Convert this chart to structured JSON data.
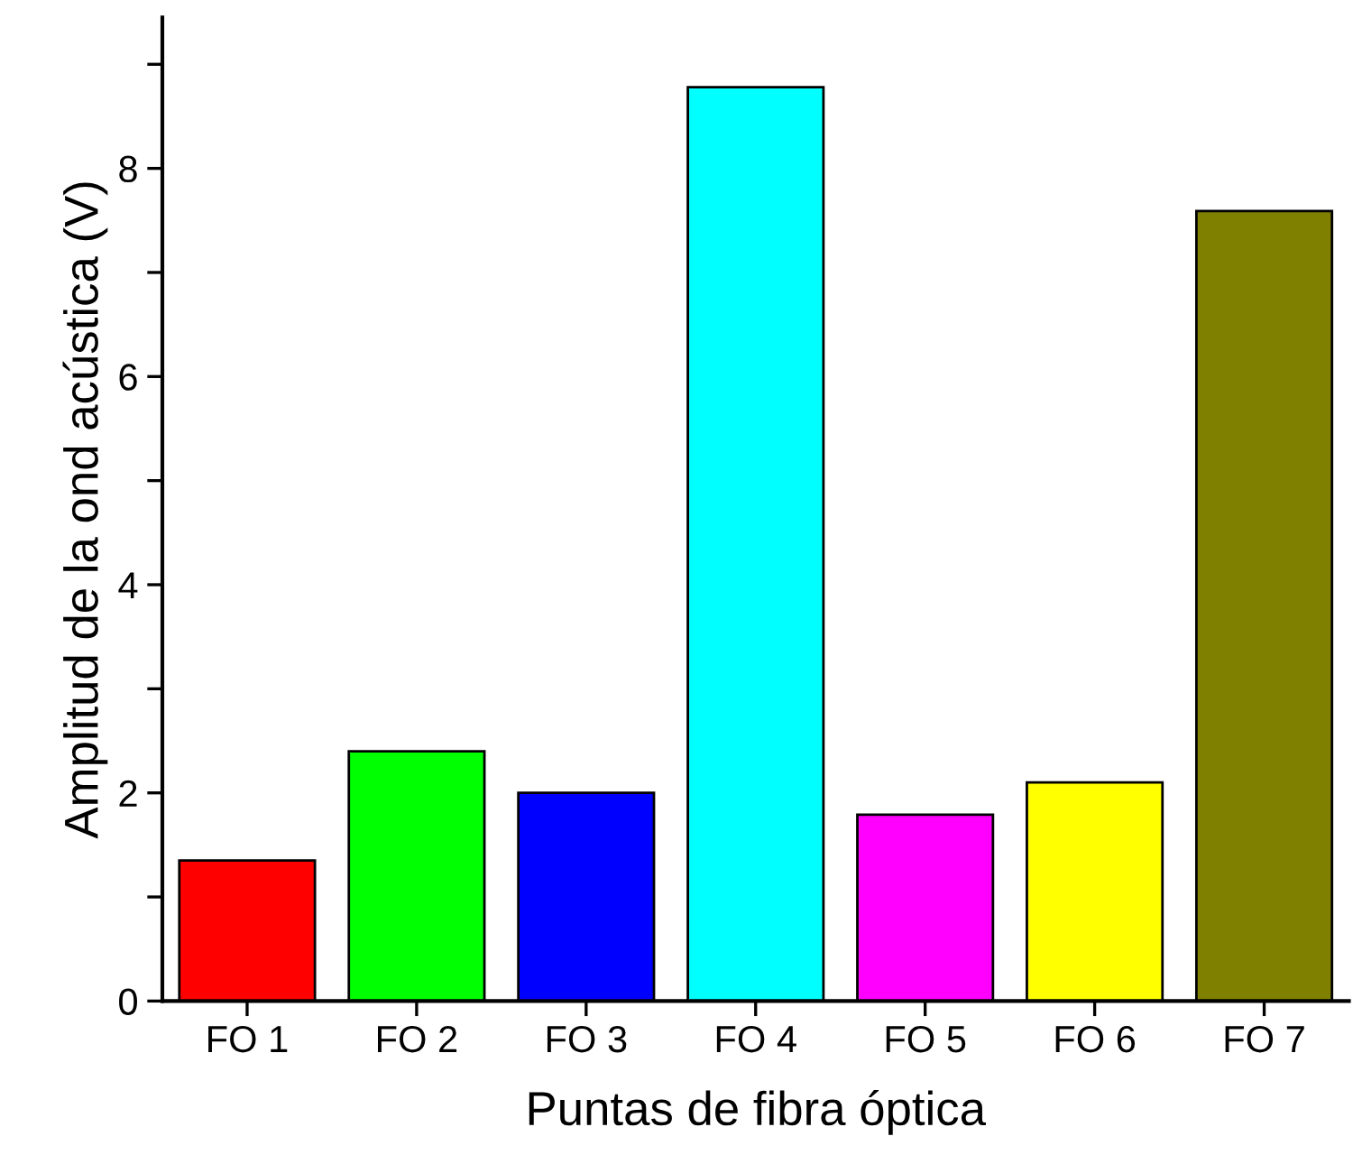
{
  "chart_data": {
    "type": "bar",
    "xlabel": "Puntas de fibra óptica",
    "ylabel": "Amplitud de la ond acústica (V)",
    "categories": [
      "FO 1",
      "FO 2",
      "FO 3",
      "FO 4",
      "FO 5",
      "FO 6",
      "FO 7"
    ],
    "values": [
      1.35,
      2.4,
      2.0,
      8.78,
      1.79,
      2.1,
      7.59
    ],
    "colors": [
      "#ff0000",
      "#00ff00",
      "#0000ff",
      "#00ffff",
      "#ff00ff",
      "#ffff00",
      "#808000"
    ],
    "ylim": [
      0,
      9.45
    ],
    "yticks": [
      0,
      {
        "value": 1,
        "label": null
      },
      2,
      {
        "value": 3,
        "label": null
      },
      4,
      {
        "value": 5,
        "label": null
      },
      6,
      {
        "value": 7,
        "label": null
      },
      8,
      {
        "value": 9,
        "label": null
      }
    ],
    "grid": false,
    "legend": false
  }
}
